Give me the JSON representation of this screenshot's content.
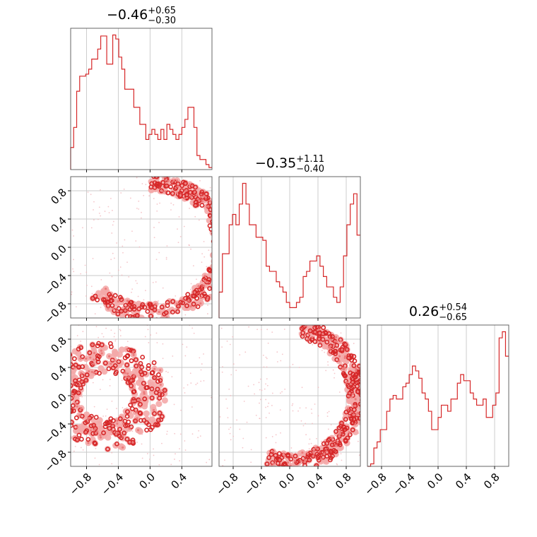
{
  "chart_data": {
    "type": "corner",
    "color": "#d62728",
    "fill_light": "#f4a9a9",
    "fill_mid": "#ec7c7c",
    "grid": true,
    "variables": [
      {
        "title": {
          "median": "−0.46",
          "plus": "+0.65",
          "minus": "−0.30"
        },
        "range": [
          -1.0,
          0.78
        ]
      },
      {
        "title": {
          "median": "−0.35",
          "plus": "+1.11",
          "minus": "−0.40"
        },
        "range": [
          -1.0,
          1.0
        ]
      },
      {
        "title": {
          "median": "0.26",
          "plus": "+0.54",
          "minus": "−0.65"
        },
        "range": [
          -1.0,
          1.0
        ]
      }
    ],
    "ticks": {
      "var0": [
        {
          "v": -0.8,
          "label": "−0.8"
        },
        {
          "v": -0.4,
          "label": "−0.4"
        },
        {
          "v": 0.0,
          "label": "0.0"
        },
        {
          "v": 0.4,
          "label": "0.4"
        }
      ],
      "var1": [
        {
          "v": -0.8,
          "label": "−0.8"
        },
        {
          "v": -0.4,
          "label": "−0.4"
        },
        {
          "v": 0.0,
          "label": "0.0"
        },
        {
          "v": 0.4,
          "label": "0.4"
        },
        {
          "v": 0.8,
          "label": "0.8"
        }
      ],
      "var2": [
        {
          "v": -0.8,
          "label": "−0.8"
        },
        {
          "v": -0.4,
          "label": "−0.4"
        },
        {
          "v": 0.0,
          "label": "0.0"
        },
        {
          "v": 0.4,
          "label": "0.4"
        },
        {
          "v": 0.8,
          "label": "0.8"
        }
      ]
    },
    "histograms": [
      {
        "variable": 0,
        "range": [
          -1.0,
          0.78
        ],
        "heights": [
          0.22,
          0.42,
          0.78,
          0.93,
          0.93,
          0.95,
          1.0,
          1.1,
          1.1,
          1.2,
          1.33,
          1.33,
          1.05,
          1.05,
          1.34,
          1.3,
          1.12,
          1.0,
          0.8,
          0.8,
          0.8,
          0.62,
          0.62,
          0.45,
          0.45,
          0.3,
          0.35,
          0.4,
          0.35,
          0.3,
          0.4,
          0.3,
          0.45,
          0.4,
          0.35,
          0.3,
          0.35,
          0.42,
          0.5,
          0.62,
          0.62,
          0.42,
          0.14,
          0.1,
          0.1,
          0.05,
          0.02
        ]
      },
      {
        "variable": 1,
        "range": [
          -1.0,
          1.0
        ],
        "heights": [
          0.25,
          0.62,
          0.62,
          0.9,
          1.0,
          0.9,
          1.1,
          1.3,
          1.1,
          0.9,
          0.9,
          0.78,
          0.78,
          0.75,
          0.5,
          0.45,
          0.45,
          0.35,
          0.3,
          0.25,
          0.15,
          0.1,
          0.1,
          0.15,
          0.2,
          0.4,
          0.45,
          0.55,
          0.55,
          0.6,
          0.5,
          0.4,
          0.3,
          0.3,
          0.2,
          0.15,
          0.3,
          0.6,
          0.9,
          1.1,
          1.2,
          0.8
        ]
      },
      {
        "variable": 2,
        "range": [
          -1.0,
          1.0
        ],
        "heights": [
          0.0,
          0.02,
          0.15,
          0.2,
          0.3,
          0.3,
          0.45,
          0.55,
          0.58,
          0.55,
          0.55,
          0.65,
          0.68,
          0.75,
          0.82,
          0.78,
          0.72,
          0.6,
          0.55,
          0.45,
          0.3,
          0.3,
          0.4,
          0.5,
          0.5,
          0.45,
          0.55,
          0.55,
          0.68,
          0.75,
          0.7,
          0.7,
          0.6,
          0.55,
          0.5,
          0.5,
          0.55,
          0.4,
          0.4,
          0.5,
          0.6,
          1.05,
          1.1,
          0.9
        ]
      }
    ],
    "pairs": [
      {
        "x": 0,
        "y": 1,
        "x_range": [
          -1.0,
          0.78
        ],
        "y_range": [
          -1.0,
          1.0
        ],
        "shape": "arc",
        "center": [
          0.0,
          0.0
        ],
        "radius": 0.92,
        "arc_from_deg": -135,
        "arc_to_deg": 90,
        "thickness": 0.12
      },
      {
        "x": 0,
        "y": 2,
        "x_range": [
          -1.0,
          0.78
        ],
        "y_range": [
          -1.0,
          1.0
        ],
        "shape": "ring",
        "center": [
          -0.55,
          0.0
        ],
        "radius": 0.55,
        "thickness": 0.22
      },
      {
        "x": 1,
        "y": 2,
        "x_range": [
          -1.0,
          1.0
        ],
        "y_range": [
          -1.0,
          1.0
        ],
        "shape": "arc",
        "center": [
          0.0,
          0.0
        ],
        "radius": 0.95,
        "arc_from_deg": -110,
        "arc_to_deg": 80,
        "thickness": 0.13
      }
    ]
  }
}
